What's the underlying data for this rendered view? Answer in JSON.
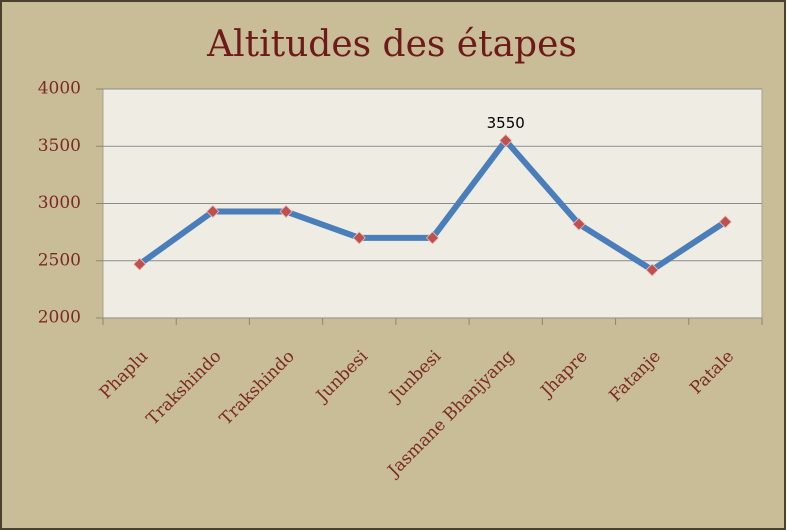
{
  "chart_data": {
    "type": "line",
    "title": "Altitudes des étapes",
    "categories": [
      "Phaplu",
      "Trakshindo",
      "Trakshindo",
      "Junbesi",
      "Junbesi",
      "Jasmane Bhanjyang",
      "Jhapre",
      "Fatanje",
      "Patale"
    ],
    "values": [
      2470,
      2930,
      2930,
      2700,
      2700,
      3550,
      2820,
      2420,
      2840
    ],
    "color": "#4a7ebb",
    "marker_color": "#c0504d",
    "ylim": [
      2000,
      4000
    ],
    "yticks": [
      2000,
      2500,
      3000,
      3500,
      4000
    ],
    "grid": true
  }
}
